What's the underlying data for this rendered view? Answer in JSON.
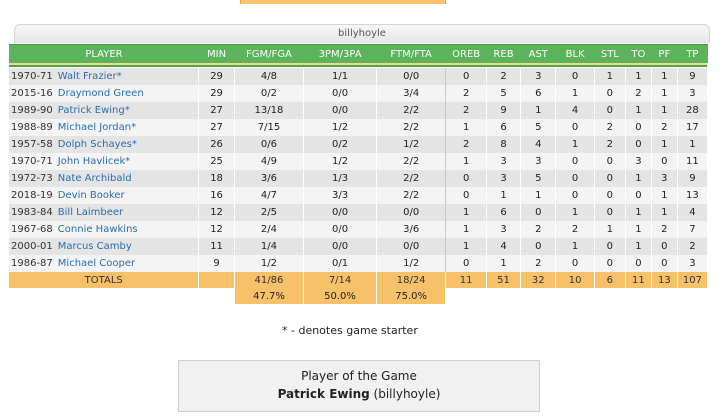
{
  "owner": "billyhoyle",
  "columns": [
    "PLAYER",
    "MIN",
    "FGM/FGA",
    "3PM/3PA",
    "FTM/FTA",
    "OREB",
    "REB",
    "AST",
    "BLK",
    "STL",
    "TO",
    "PF",
    "TP"
  ],
  "players": [
    {
      "season": "1970-71",
      "name": "Walt Frazier",
      "star": "*",
      "min": "29",
      "fg": "4/8",
      "tp3": "1/1",
      "ft": "0/0",
      "oreb": "0",
      "reb": "2",
      "ast": "3",
      "blk": "0",
      "stl": "1",
      "to": "1",
      "pf": "1",
      "pts": "9"
    },
    {
      "season": "2015-16",
      "name": "Draymond Green",
      "star": "",
      "min": "29",
      "fg": "0/2",
      "tp3": "0/0",
      "ft": "3/4",
      "oreb": "2",
      "reb": "5",
      "ast": "6",
      "blk": "1",
      "stl": "0",
      "to": "2",
      "pf": "1",
      "pts": "3"
    },
    {
      "season": "1989-90",
      "name": "Patrick Ewing",
      "star": "*",
      "min": "27",
      "fg": "13/18",
      "tp3": "0/0",
      "ft": "2/2",
      "oreb": "2",
      "reb": "9",
      "ast": "1",
      "blk": "4",
      "stl": "0",
      "to": "1",
      "pf": "1",
      "pts": "28"
    },
    {
      "season": "1988-89",
      "name": "Michael Jordan",
      "star": "*",
      "min": "27",
      "fg": "7/15",
      "tp3": "1/2",
      "ft": "2/2",
      "oreb": "1",
      "reb": "6",
      "ast": "5",
      "blk": "0",
      "stl": "2",
      "to": "0",
      "pf": "2",
      "pts": "17"
    },
    {
      "season": "1957-58",
      "name": "Dolph Schayes",
      "star": "*",
      "min": "26",
      "fg": "0/6",
      "tp3": "0/2",
      "ft": "1/2",
      "oreb": "2",
      "reb": "8",
      "ast": "4",
      "blk": "1",
      "stl": "2",
      "to": "0",
      "pf": "1",
      "pts": "1"
    },
    {
      "season": "1970-71",
      "name": "John Havlicek",
      "star": "*",
      "min": "25",
      "fg": "4/9",
      "tp3": "1/2",
      "ft": "2/2",
      "oreb": "1",
      "reb": "3",
      "ast": "3",
      "blk": "0",
      "stl": "0",
      "to": "3",
      "pf": "0",
      "pts": "11"
    },
    {
      "season": "1972-73",
      "name": "Nate Archibald",
      "star": "",
      "min": "18",
      "fg": "3/6",
      "tp3": "1/3",
      "ft": "2/2",
      "oreb": "0",
      "reb": "3",
      "ast": "5",
      "blk": "0",
      "stl": "0",
      "to": "1",
      "pf": "3",
      "pts": "9"
    },
    {
      "season": "2018-19",
      "name": "Devin Booker",
      "star": "",
      "min": "16",
      "fg": "4/7",
      "tp3": "3/3",
      "ft": "2/2",
      "oreb": "0",
      "reb": "1",
      "ast": "1",
      "blk": "0",
      "stl": "0",
      "to": "0",
      "pf": "1",
      "pts": "13"
    },
    {
      "season": "1983-84",
      "name": "Bill Laimbeer",
      "star": "",
      "min": "12",
      "fg": "2/5",
      "tp3": "0/0",
      "ft": "0/0",
      "oreb": "1",
      "reb": "6",
      "ast": "0",
      "blk": "1",
      "stl": "0",
      "to": "1",
      "pf": "1",
      "pts": "4"
    },
    {
      "season": "1967-68",
      "name": "Connie Hawkins",
      "star": "",
      "min": "12",
      "fg": "2/4",
      "tp3": "0/0",
      "ft": "3/6",
      "oreb": "1",
      "reb": "3",
      "ast": "2",
      "blk": "2",
      "stl": "1",
      "to": "1",
      "pf": "2",
      "pts": "7"
    },
    {
      "season": "2000-01",
      "name": "Marcus Camby",
      "star": "",
      "min": "11",
      "fg": "1/4",
      "tp3": "0/0",
      "ft": "0/0",
      "oreb": "1",
      "reb": "4",
      "ast": "0",
      "blk": "1",
      "stl": "0",
      "to": "1",
      "pf": "0",
      "pts": "2"
    },
    {
      "season": "1986-87",
      "name": "Michael Cooper",
      "star": "",
      "min": "9",
      "fg": "1/2",
      "tp3": "0/1",
      "ft": "1/2",
      "oreb": "0",
      "reb": "1",
      "ast": "2",
      "blk": "0",
      "stl": "0",
      "to": "0",
      "pf": "0",
      "pts": "3"
    }
  ],
  "totals": {
    "label": "TOTALS",
    "fg": "41/86",
    "tp3": "7/14",
    "ft": "18/24",
    "oreb": "11",
    "reb": "51",
    "ast": "32",
    "blk": "10",
    "stl": "6",
    "to": "11",
    "pf": "13",
    "pts": "107"
  },
  "percentages": {
    "fg": "47.7%",
    "tp3": "50.0%",
    "ft": "75.0%"
  },
  "footnote": "* - denotes game starter",
  "potg": {
    "title": "Player of the Game",
    "player": "Patrick Ewing",
    "owner": "(billyhoyle)"
  },
  "colors": {
    "header_green": "#5bb35b",
    "totals_orange": "#f7c16a",
    "link_blue": "#2a6db0"
  }
}
